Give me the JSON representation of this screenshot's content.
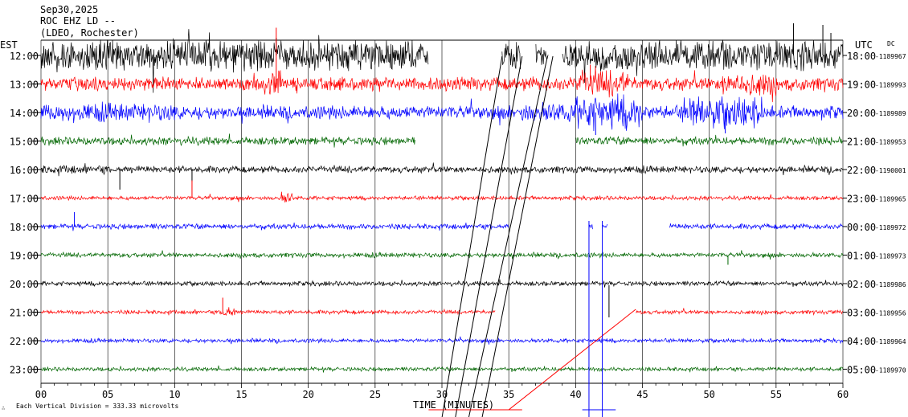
{
  "header": {
    "date": "Sep30,2025",
    "station": "ROC EHZ LD --",
    "location": "(LDEO, Rochester)"
  },
  "labels": {
    "est": "EST",
    "utc": "UTC",
    "dc": "DC",
    "x_title": "TIME (MINUTES)",
    "footer": "Each Vertical Division = 333.33 microvolts",
    "corner_mark": "∴"
  },
  "colors": {
    "black": "#000000",
    "red": "#ff0000",
    "blue": "#0000ff",
    "green": "#006600",
    "grid": "#000000"
  },
  "chart_data": {
    "type": "line",
    "title": "",
    "xlabel": "TIME (MINUTES)",
    "xlim": [
      0,
      60
    ],
    "x_ticks": [
      "00",
      "05",
      "10",
      "15",
      "20",
      "25",
      "30",
      "35",
      "40",
      "45",
      "50",
      "55",
      "60"
    ],
    "grid": true,
    "rows": [
      {
        "est": "12:00",
        "utc": "18:00",
        "dc": "-1189967",
        "color": "black",
        "amp": 14,
        "gaps": [
          [
            29,
            34.5
          ],
          [
            35.9,
            37
          ],
          [
            38,
            39
          ]
        ],
        "bursts": [
          [
            0,
            29,
            1.6
          ],
          [
            39,
            60,
            1.6
          ],
          [
            34.5,
            35.9,
            1.5
          ]
        ],
        "spikes": [
          [
            56.3,
            -40
          ],
          [
            58.5,
            -38
          ],
          [
            59.1,
            -28
          ],
          [
            17.6,
            -22
          ]
        ]
      },
      {
        "est": "13:00",
        "utc": "19:00",
        "dc": "-1189993",
        "color": "red",
        "amp": 10,
        "gaps": [],
        "bursts": [
          [
            17,
            18,
            2.2
          ],
          [
            40,
            44,
            2.0
          ],
          [
            51,
            55,
            1.8
          ]
        ],
        "spikes": [
          [
            17.6,
            -70
          ],
          [
            41.1,
            -24
          ]
        ]
      },
      {
        "est": "14:00",
        "utc": "20:00",
        "dc": "-1189989",
        "color": "blue",
        "amp": 10,
        "gaps": [],
        "bursts": [
          [
            36,
            40,
            1.5
          ],
          [
            40,
            45,
            2.6
          ],
          [
            48,
            54,
            2.4
          ],
          [
            0,
            10,
            1.3
          ]
        ],
        "spikes": [
          [
            41.5,
            28
          ],
          [
            51.2,
            26
          ]
        ]
      },
      {
        "est": "15:00",
        "utc": "21:00",
        "dc": "-1189953",
        "color": "green",
        "amp": 6,
        "gaps": [
          [
            28,
            40
          ]
        ],
        "bursts": [],
        "spikes": []
      },
      {
        "est": "16:00",
        "utc": "22:00",
        "dc": "-1190001",
        "color": "black",
        "amp": 5,
        "gaps": [],
        "bursts": [
          [
            0,
            5,
            1.3
          ]
        ],
        "spikes": [
          [
            5.9,
            25
          ],
          [
            11.3,
            15
          ]
        ]
      },
      {
        "est": "17:00",
        "utc": "23:00",
        "dc": "-1189965",
        "color": "red",
        "amp": 3,
        "gaps": [],
        "bursts": [
          [
            18,
            18.8,
            3.0
          ]
        ],
        "spikes": [
          [
            11.3,
            -22
          ]
        ]
      },
      {
        "est": "18:00",
        "utc": "00:00",
        "dc": "-1189972",
        "color": "blue",
        "amp": 4,
        "gaps": [
          [
            35,
            41
          ],
          [
            41.3,
            42
          ],
          [
            42.4,
            47
          ]
        ],
        "bursts": [],
        "spikes": [
          [
            2.5,
            -18
          ]
        ]
      },
      {
        "est": "19:00",
        "utc": "01:00",
        "dc": "-1189973",
        "color": "green",
        "amp": 3.5,
        "gaps": [],
        "bursts": [],
        "spikes": [
          [
            51.4,
            12
          ]
        ]
      },
      {
        "est": "20:00",
        "utc": "02:00",
        "dc": "-1189986",
        "color": "black",
        "amp": 3.5,
        "gaps": [],
        "bursts": [],
        "spikes": []
      },
      {
        "est": "21:00",
        "utc": "03:00",
        "dc": "-1189956",
        "color": "red",
        "amp": 3,
        "gaps": [
          [
            34,
            44.5
          ]
        ],
        "bursts": [
          [
            13.5,
            14.5,
            3.2
          ]
        ],
        "spikes": [
          [
            13.6,
            -18
          ]
        ]
      },
      {
        "est": "22:00",
        "utc": "04:00",
        "dc": "-1189964",
        "color": "blue",
        "amp": 3,
        "gaps": [],
        "bursts": [],
        "spikes": []
      },
      {
        "est": "23:00",
        "utc": "05:00",
        "dc": "-1189970",
        "color": "green",
        "amp": 3,
        "gaps": [],
        "bursts": [],
        "spikes": []
      }
    ],
    "artifacts": [
      {
        "color": "black",
        "points": [
          [
            30,
            520
          ],
          [
            34.5,
            70
          ]
        ]
      },
      {
        "color": "black",
        "points": [
          [
            31,
            520
          ],
          [
            36,
            70
          ]
        ]
      },
      {
        "color": "black",
        "points": [
          [
            32,
            520
          ],
          [
            37.9,
            70
          ]
        ]
      },
      {
        "color": "black",
        "points": [
          [
            33,
            520
          ],
          [
            38.3,
            70
          ]
        ]
      },
      {
        "color": "red",
        "points": [
          [
            35,
            510
          ],
          [
            44.5,
            385
          ]
        ]
      },
      {
        "color": "red",
        "points": [
          [
            29,
            510
          ],
          [
            36,
            510
          ]
        ]
      },
      {
        "color": "blue",
        "points": [
          [
            41,
            275
          ],
          [
            41,
            519
          ]
        ]
      },
      {
        "color": "blue",
        "points": [
          [
            42,
            275
          ],
          [
            42,
            519
          ]
        ]
      },
      {
        "color": "blue",
        "points": [
          [
            40.5,
            510
          ],
          [
            43,
            510
          ]
        ]
      },
      {
        "color": "black",
        "points": [
          [
            42.5,
            355
          ],
          [
            42.5,
            395
          ]
        ]
      }
    ]
  }
}
